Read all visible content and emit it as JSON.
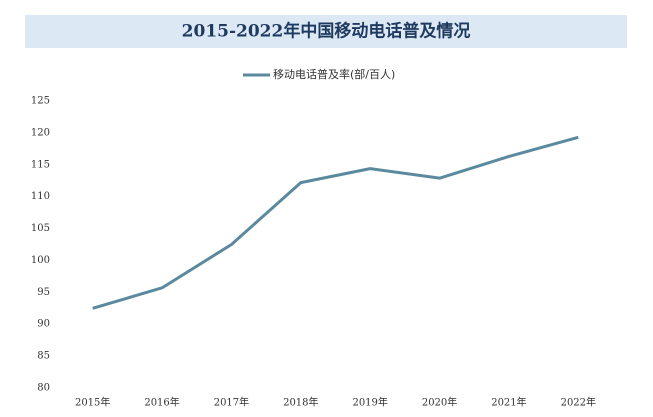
{
  "chart_data": {
    "type": "line",
    "title": "2015-2022年中国移动电话普及情况",
    "categories": [
      "2015年",
      "2016年",
      "2017年",
      "2018年",
      "2019年",
      "2020年",
      "2021年",
      "2022年"
    ],
    "series": [
      {
        "name": "移动电话普及率(部/百人)",
        "color": "#5b8a9e",
        "values": [
          92.5,
          95.7,
          102.5,
          112.2,
          114.4,
          112.9,
          116.3,
          119.3
        ]
      }
    ],
    "ylim": [
      80,
      125
    ],
    "yticks": [
      80,
      85,
      90,
      95,
      100,
      105,
      110,
      115,
      120,
      125
    ],
    "grid": false,
    "legend": "top"
  }
}
